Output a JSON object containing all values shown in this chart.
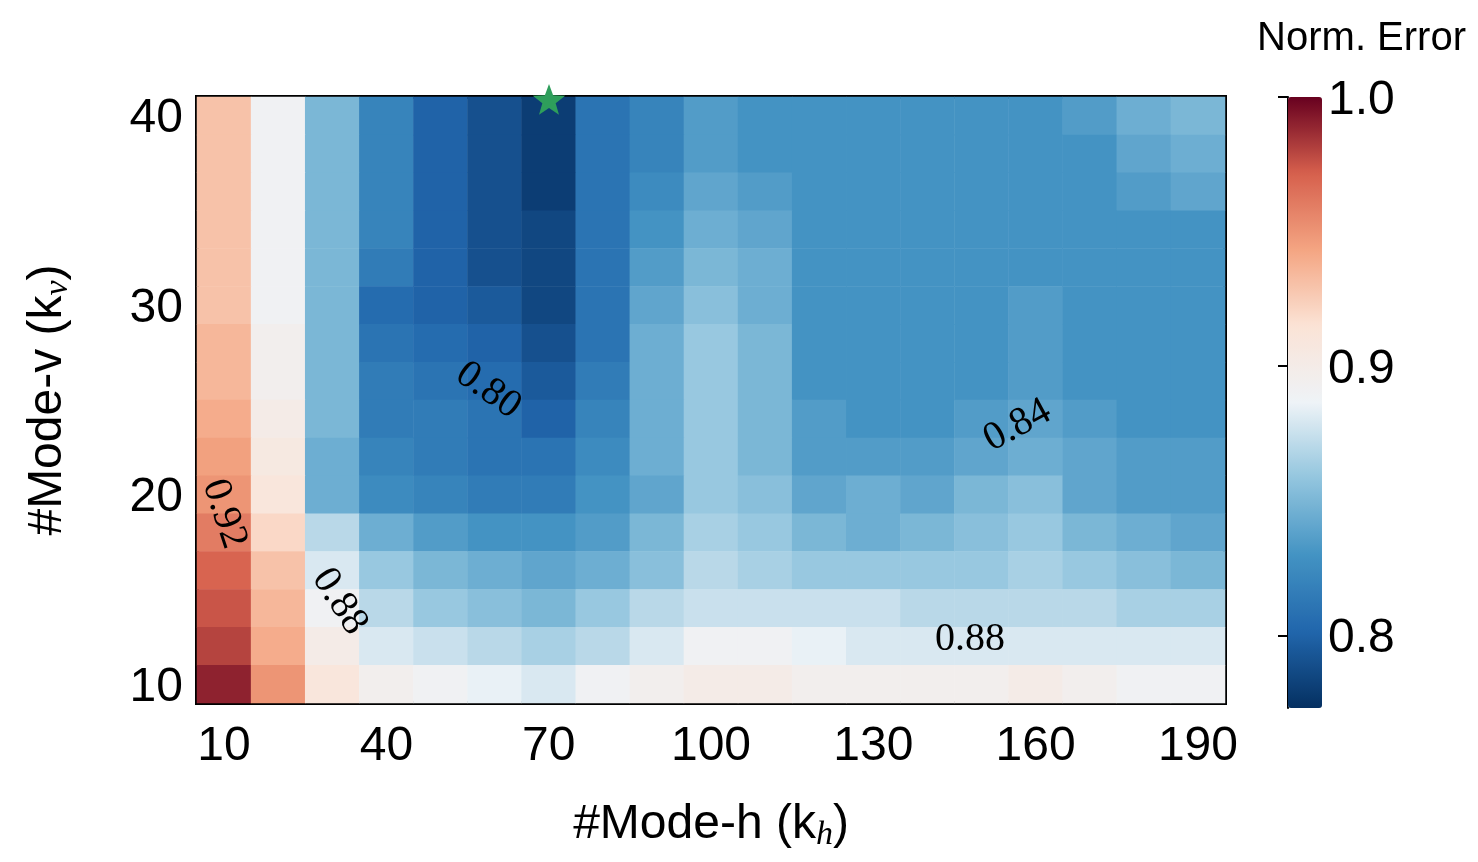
{
  "chart_data": {
    "type": "heatmap",
    "xlabel": "#Mode-h (k$_{h}$)",
    "ylabel": "#Mode-v (k$_{v}$)",
    "clabel": "Norm. Error",
    "categories": [
      "10",
      null,
      null,
      "40",
      null,
      null,
      "70",
      null,
      null,
      "100",
      null,
      null,
      "130",
      null,
      null,
      "160",
      null,
      null,
      "190"
    ],
    "y_categories": [
      "40",
      null,
      null,
      null,
      null,
      "30",
      null,
      null,
      null,
      null,
      "20",
      null,
      null,
      null,
      null,
      "10"
    ],
    "cells": [
      [
        0.93,
        0.89,
        0.85,
        0.82,
        0.8,
        0.79,
        0.78,
        0.81,
        0.82,
        0.835,
        0.83,
        0.83,
        0.83,
        0.83,
        0.83,
        0.83,
        0.835,
        0.845,
        0.85
      ],
      [
        0.93,
        0.89,
        0.85,
        0.82,
        0.8,
        0.79,
        0.78,
        0.81,
        0.82,
        0.835,
        0.83,
        0.83,
        0.83,
        0.83,
        0.83,
        0.83,
        0.83,
        0.84,
        0.845
      ],
      [
        0.93,
        0.89,
        0.85,
        0.82,
        0.8,
        0.79,
        0.78,
        0.81,
        0.825,
        0.84,
        0.835,
        0.83,
        0.83,
        0.83,
        0.83,
        0.83,
        0.83,
        0.835,
        0.84
      ],
      [
        0.93,
        0.89,
        0.85,
        0.82,
        0.8,
        0.79,
        0.785,
        0.81,
        0.83,
        0.845,
        0.84,
        0.83,
        0.83,
        0.83,
        0.83,
        0.83,
        0.83,
        0.83,
        0.83
      ],
      [
        0.93,
        0.89,
        0.85,
        0.815,
        0.8,
        0.79,
        0.785,
        0.81,
        0.835,
        0.85,
        0.845,
        0.83,
        0.83,
        0.83,
        0.83,
        0.83,
        0.83,
        0.83,
        0.83
      ],
      [
        0.93,
        0.89,
        0.85,
        0.805,
        0.8,
        0.795,
        0.785,
        0.81,
        0.84,
        0.855,
        0.845,
        0.83,
        0.83,
        0.83,
        0.83,
        0.835,
        0.83,
        0.83,
        0.83
      ],
      [
        0.935,
        0.895,
        0.85,
        0.81,
        0.805,
        0.8,
        0.79,
        0.81,
        0.845,
        0.86,
        0.85,
        0.83,
        0.83,
        0.83,
        0.83,
        0.835,
        0.83,
        0.83,
        0.83
      ],
      [
        0.935,
        0.895,
        0.85,
        0.815,
        0.81,
        0.805,
        0.795,
        0.815,
        0.845,
        0.86,
        0.85,
        0.83,
        0.83,
        0.83,
        0.83,
        0.835,
        0.83,
        0.83,
        0.83
      ],
      [
        0.94,
        0.9,
        0.85,
        0.815,
        0.815,
        0.81,
        0.8,
        0.82,
        0.845,
        0.86,
        0.85,
        0.835,
        0.83,
        0.83,
        0.835,
        0.84,
        0.835,
        0.83,
        0.83
      ],
      [
        0.945,
        0.905,
        0.845,
        0.82,
        0.815,
        0.81,
        0.81,
        0.825,
        0.845,
        0.86,
        0.85,
        0.835,
        0.835,
        0.835,
        0.84,
        0.845,
        0.84,
        0.835,
        0.835
      ],
      [
        0.95,
        0.91,
        0.845,
        0.825,
        0.82,
        0.815,
        0.815,
        0.83,
        0.84,
        0.86,
        0.855,
        0.84,
        0.845,
        0.84,
        0.85,
        0.855,
        0.84,
        0.835,
        0.835
      ],
      [
        0.96,
        0.92,
        0.87,
        0.845,
        0.835,
        0.83,
        0.83,
        0.835,
        0.85,
        0.865,
        0.86,
        0.85,
        0.845,
        0.85,
        0.855,
        0.86,
        0.85,
        0.845,
        0.84
      ],
      [
        0.97,
        0.93,
        0.88,
        0.86,
        0.85,
        0.845,
        0.84,
        0.845,
        0.855,
        0.87,
        0.865,
        0.86,
        0.86,
        0.86,
        0.86,
        0.865,
        0.86,
        0.855,
        0.85
      ],
      [
        0.975,
        0.935,
        0.89,
        0.87,
        0.86,
        0.855,
        0.85,
        0.86,
        0.87,
        0.875,
        0.875,
        0.875,
        0.875,
        0.87,
        0.87,
        0.87,
        0.87,
        0.865,
        0.865
      ],
      [
        0.98,
        0.94,
        0.9,
        0.88,
        0.875,
        0.87,
        0.865,
        0.87,
        0.88,
        0.89,
        0.89,
        0.885,
        0.88,
        0.88,
        0.88,
        0.88,
        0.88,
        0.88,
        0.88
      ],
      [
        0.99,
        0.95,
        0.91,
        0.895,
        0.89,
        0.885,
        0.88,
        0.89,
        0.895,
        0.9,
        0.9,
        0.895,
        0.895,
        0.895,
        0.895,
        0.9,
        0.895,
        0.89,
        0.89
      ]
    ],
    "clim": [
      0.773,
      1.0
    ],
    "cticks": [
      0.8,
      0.9,
      {
        "value": 1,
        "label": "1.0"
      }
    ],
    "annotations": [
      "0.80",
      "0.84",
      "0.88",
      "0.88",
      "0.92"
    ]
  }
}
